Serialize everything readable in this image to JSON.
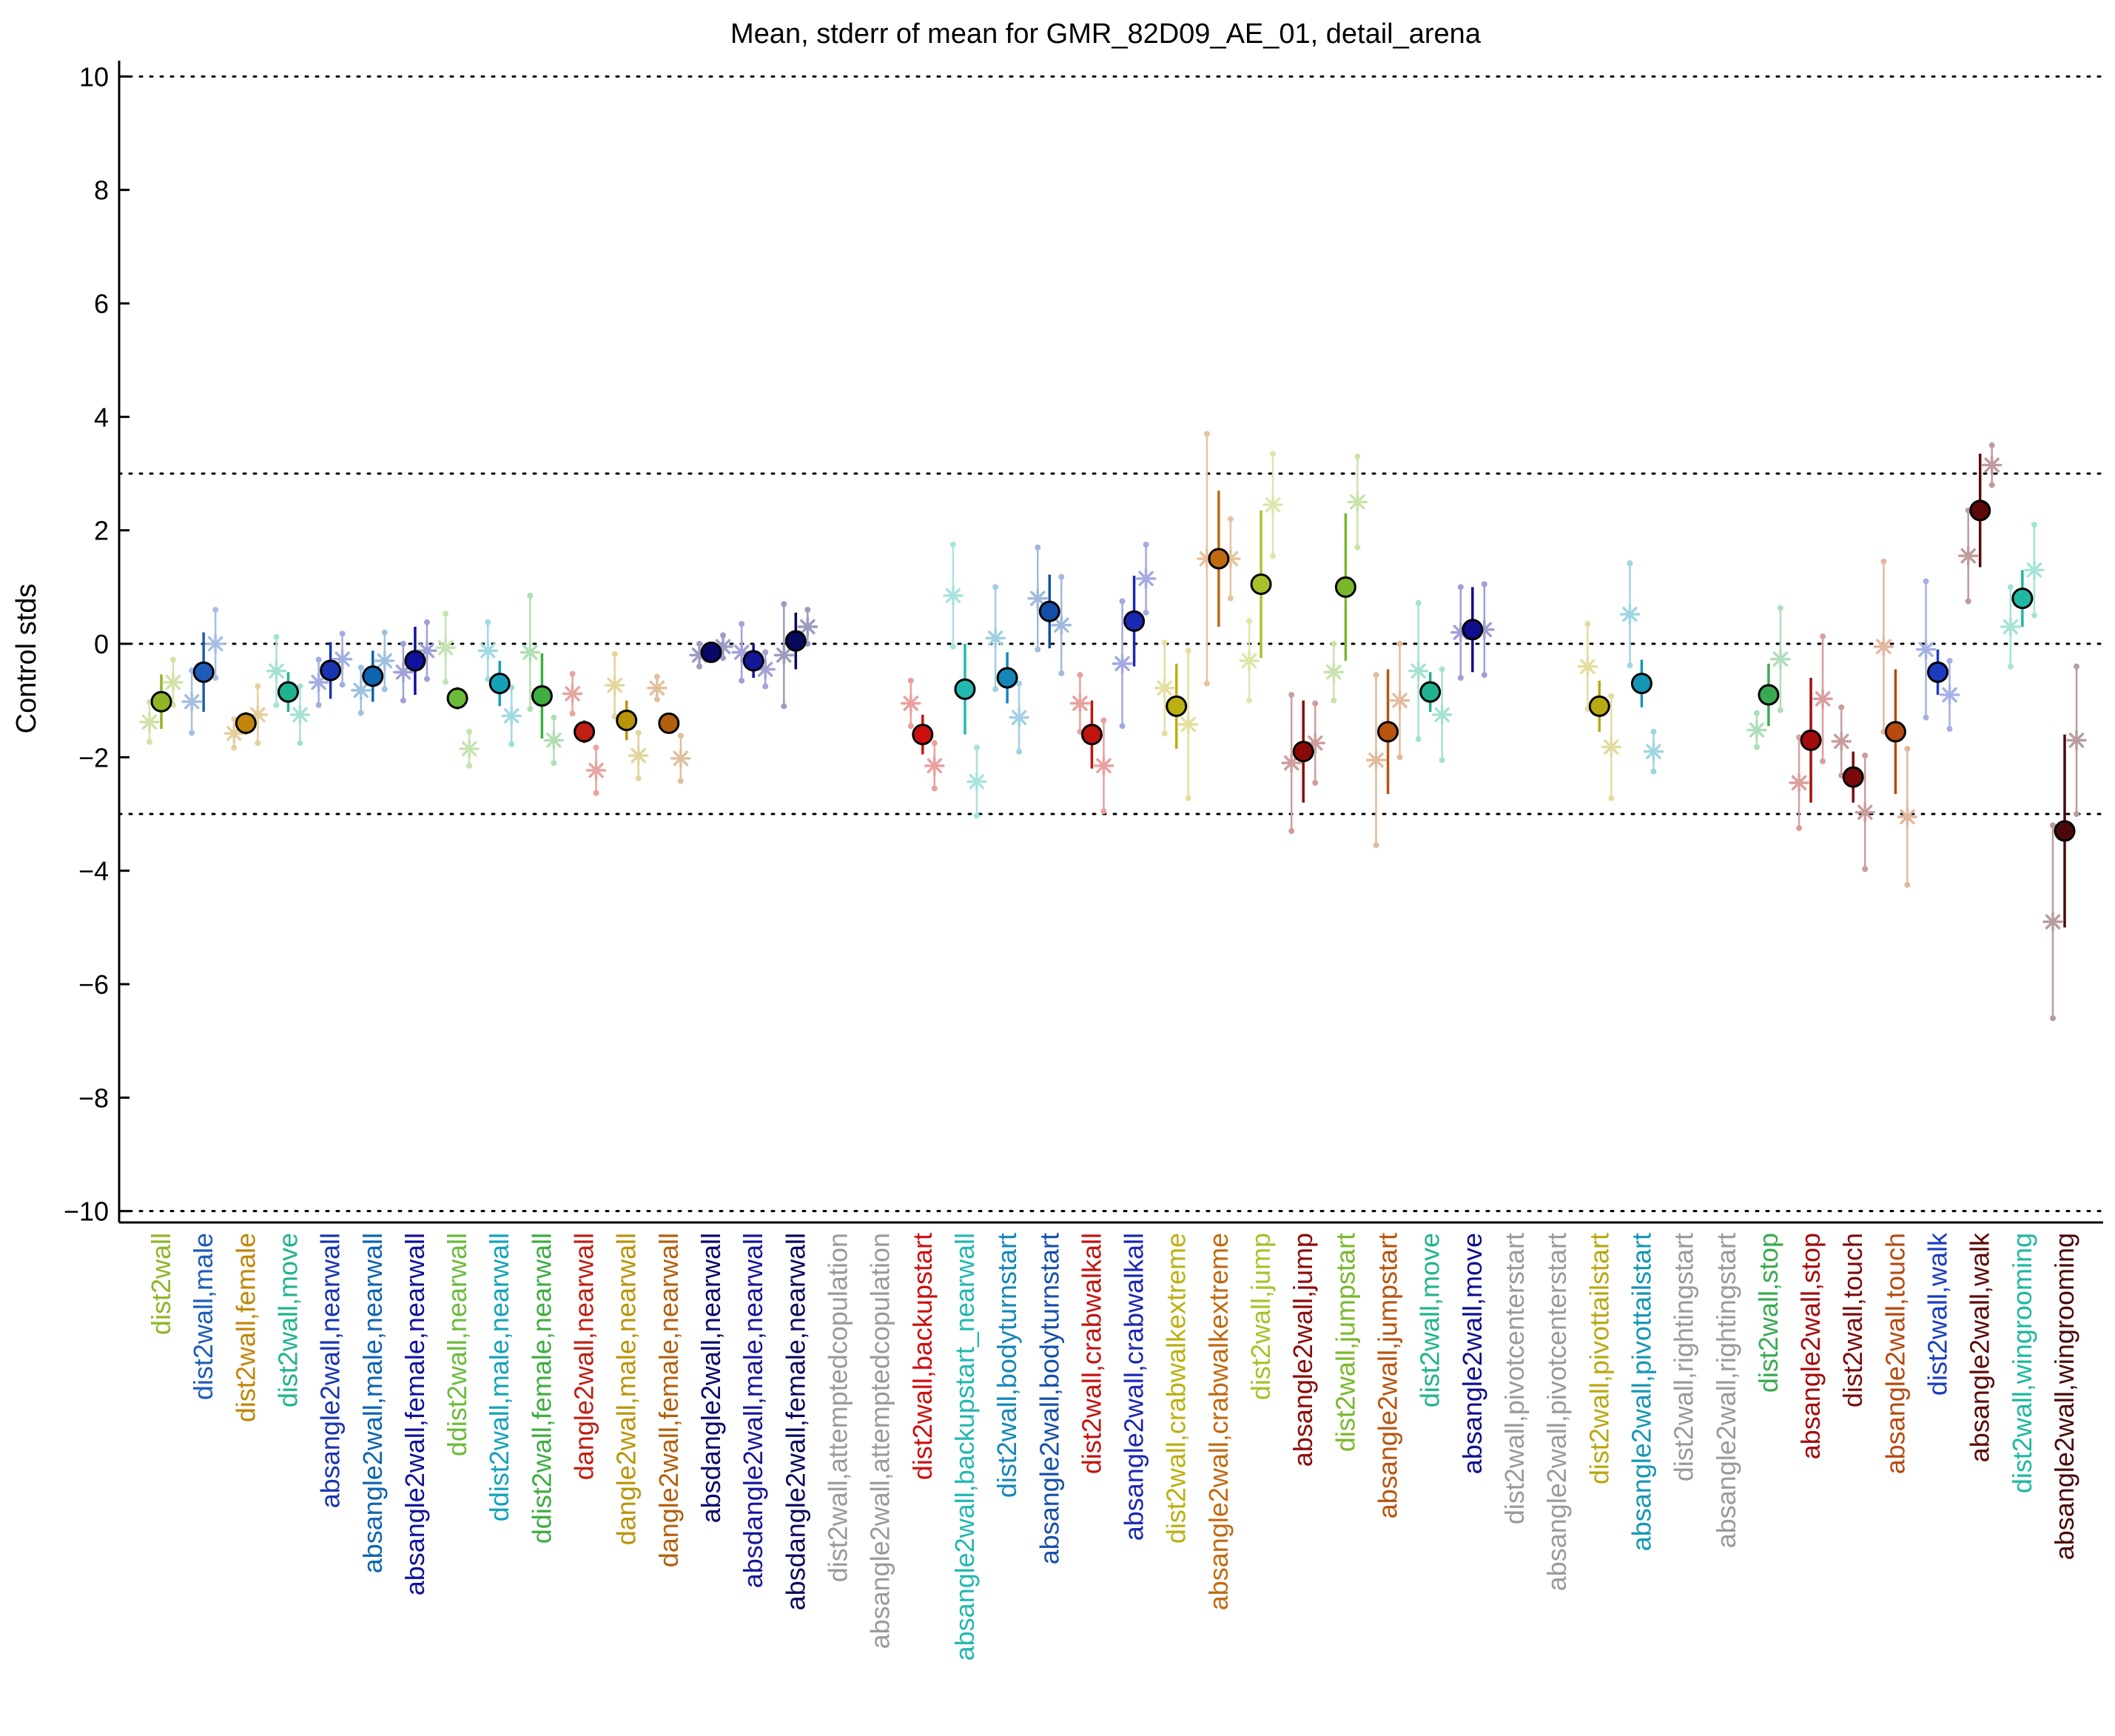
{
  "chart_data": {
    "type": "scatter",
    "title": "Mean, stderr of mean for GMR_82D09_AE_01, detail_arena",
    "ylabel": "Control stds",
    "xlabel": "",
    "ylim": [
      -10.2,
      10.2
    ],
    "yticks": [
      10,
      8,
      6,
      4,
      2,
      0,
      -2,
      -4,
      -6,
      -8,
      -10
    ],
    "ytick_labels": [
      "10",
      "8",
      "6",
      "4",
      "2",
      "0",
      "−2",
      "−4",
      "−6",
      "−8",
      "−10"
    ],
    "reference_lines": [
      10,
      3,
      0,
      -3,
      -10
    ],
    "grid": false,
    "legend": "none",
    "categories": [
      {
        "label": "dist2wall",
        "color": "#8fb526",
        "mean": -1.02,
        "se": 0.48,
        "male": -1.38,
        "female": -0.68,
        "mse": 0.35,
        "fse": 0.4
      },
      {
        "label": "dist2wall,male",
        "color": "#1f5cb8",
        "mean": -0.5,
        "se": 0.7,
        "male": -1.02,
        "female": 0.0,
        "mse": 0.55,
        "fse": 0.6
      },
      {
        "label": "dist2wall,female",
        "color": "#c1860a",
        "mean": -1.4,
        "se": 0.2,
        "male": -1.58,
        "female": -1.25,
        "mse": 0.25,
        "fse": 0.5
      },
      {
        "label": "dist2wall,move",
        "color": "#21b38f",
        "mean": -0.85,
        "se": 0.35,
        "male": -0.48,
        "female": -1.25,
        "mse": 0.6,
        "fse": 0.5
      },
      {
        "label": "absangle2wall,nearwall",
        "color": "#1a34b0",
        "mean": -0.47,
        "se": 0.5,
        "male": -0.68,
        "female": -0.27,
        "mse": 0.4,
        "fse": 0.45
      },
      {
        "label": "absangle2wall,male,nearwall",
        "color": "#0e64b0",
        "mean": -0.57,
        "se": 0.45,
        "male": -0.82,
        "female": -0.3,
        "mse": 0.4,
        "fse": 0.5
      },
      {
        "label": "absangle2wall,female,nearwall",
        "color": "#11119b",
        "mean": -0.3,
        "se": 0.6,
        "male": -0.5,
        "female": -0.12,
        "mse": 0.5,
        "fse": 0.5
      },
      {
        "label": "ddist2wall,nearwall",
        "color": "#6bbb3b",
        "mean": -0.96,
        "se": 0.2,
        "male": -0.07,
        "female": -1.85,
        "mse": 0.6,
        "fse": 0.3
      },
      {
        "label": "ddist2wall,male,nearwall",
        "color": "#15a2b8",
        "mean": -0.7,
        "se": 0.4,
        "male": -0.12,
        "female": -1.27,
        "mse": 0.5,
        "fse": 0.5
      },
      {
        "label": "ddist2wall,female,nearwall",
        "color": "#3ead42",
        "mean": -0.92,
        "se": 0.75,
        "male": -0.15,
        "female": -1.7,
        "mse": 1.0,
        "fse": 0.4
      },
      {
        "label": "dangle2wall,nearwall",
        "color": "#bf1f14",
        "mean": -1.55,
        "se": 0.2,
        "male": -0.88,
        "female": -2.23,
        "mse": 0.35,
        "fse": 0.4
      },
      {
        "label": "dangle2wall,male,nearwall",
        "color": "#b89508",
        "mean": -1.35,
        "se": 0.35,
        "male": -0.73,
        "female": -1.97,
        "mse": 0.55,
        "fse": 0.4
      },
      {
        "label": "dangle2wall,female,nearwall",
        "color": "#b2600e",
        "mean": -1.4,
        "se": 0.12,
        "male": -0.78,
        "female": -2.02,
        "mse": 0.2,
        "fse": 0.4
      },
      {
        "label": "absdangle2wall,nearwall",
        "color": "#08086b",
        "mean": -0.15,
        "se": 0.1,
        "male": -0.2,
        "female": -0.05,
        "mse": 0.2,
        "fse": 0.2
      },
      {
        "label": "absdangle2wall,male,nearwall",
        "color": "#161699",
        "mean": -0.3,
        "se": 0.3,
        "male": -0.15,
        "female": -0.45,
        "mse": 0.5,
        "fse": 0.3
      },
      {
        "label": "absdangle2wall,female,nearwall",
        "color": "#08085c",
        "mean": 0.05,
        "se": 0.5,
        "male": -0.2,
        "female": 0.3,
        "mse": 0.9,
        "fse": 0.3
      },
      {
        "label": "dist2wall,attemptedcopulation",
        "color": "#9a9a9a"
      },
      {
        "label": "absangle2wall,attemptedcopulation",
        "color": "#9a9a9a"
      },
      {
        "label": "dist2wall,backupstart",
        "color": "#cc1010",
        "mean": -1.6,
        "se": 0.35,
        "male": -1.05,
        "female": -2.15,
        "mse": 0.4,
        "fse": 0.4
      },
      {
        "label": "absangle2wall,backupstart_nearwall",
        "color": "#23b8b0",
        "mean": -0.8,
        "se": 0.8,
        "male": 0.85,
        "female": -2.43,
        "mse": 0.9,
        "fse": 0.6
      },
      {
        "label": "dist2wall,bodyturnstart",
        "color": "#1487b8",
        "mean": -0.6,
        "se": 0.45,
        "male": 0.1,
        "female": -1.3,
        "mse": 0.9,
        "fse": 0.6
      },
      {
        "label": "absangle2wall,bodyturnstart",
        "color": "#1550a8",
        "mean": 0.57,
        "se": 0.65,
        "male": 0.8,
        "female": 0.33,
        "mse": 0.9,
        "fse": 0.85
      },
      {
        "label": "dist2wall,crabwalkall",
        "color": "#c2140f",
        "mean": -1.6,
        "se": 0.6,
        "male": -1.05,
        "female": -2.15,
        "mse": 0.5,
        "fse": 0.8
      },
      {
        "label": "absangle2wall,crabwalkall",
        "color": "#1a28b3",
        "mean": 0.4,
        "se": 0.8,
        "male": -0.35,
        "female": 1.15,
        "mse": 1.1,
        "fse": 0.6
      },
      {
        "label": "dist2wall,crabwalkextreme",
        "color": "#bbb010",
        "mean": -1.1,
        "se": 0.75,
        "male": -0.78,
        "female": -1.42,
        "mse": 0.8,
        "fse": 1.3
      },
      {
        "label": "absangle2wall,crabwalkextreme",
        "color": "#c06a10",
        "mean": 1.5,
        "se": 1.2,
        "male": 1.5,
        "female": 1.5,
        "mse": 2.2,
        "fse": 0.7
      },
      {
        "label": "dist2wall,jump",
        "color": "#a9c12a",
        "mean": 1.05,
        "se": 1.3,
        "male": -0.3,
        "female": 2.45,
        "mse": 0.7,
        "fse": 0.9
      },
      {
        "label": "absangle2wall,jump",
        "color": "#8a0a0a",
        "mean": -1.9,
        "se": 0.9,
        "male": -2.1,
        "female": -1.75,
        "mse": 1.2,
        "fse": 0.7
      },
      {
        "label": "dist2wall,jumpstart",
        "color": "#7bb72c",
        "mean": 1.0,
        "se": 1.3,
        "male": -0.5,
        "female": 2.5,
        "mse": 0.5,
        "fse": 0.8
      },
      {
        "label": "absangle2wall,jumpstart",
        "color": "#b8540e",
        "mean": -1.55,
        "se": 1.1,
        "male": -2.05,
        "female": -1.0,
        "mse": 1.5,
        "fse": 1.0
      },
      {
        "label": "dist2wall,move",
        "color": "#21b38f",
        "mean": -0.85,
        "se": 0.35,
        "male": -0.48,
        "female": -1.25,
        "mse": 1.2,
        "fse": 0.8
      },
      {
        "label": "absangle2wall,move",
        "color": "#0f0f8f",
        "mean": 0.25,
        "se": 0.75,
        "male": 0.2,
        "female": 0.25,
        "mse": 0.8,
        "fse": 0.8
      },
      {
        "label": "dist2wall,pivotcenterstart",
        "color": "#9a9a9a"
      },
      {
        "label": "absangle2wall,pivotcenterstart",
        "color": "#9a9a9a"
      },
      {
        "label": "dist2wall,pivottailstart",
        "color": "#b8a812",
        "mean": -1.1,
        "se": 0.45,
        "male": -0.4,
        "female": -1.82,
        "mse": 0.75,
        "fse": 0.9
      },
      {
        "label": "absangle2wall,pivottailstart",
        "color": "#1496b5",
        "mean": -0.7,
        "se": 0.42,
        "male": 0.52,
        "female": -1.9,
        "mse": 0.9,
        "fse": 0.35
      },
      {
        "label": "dist2wall,rightingstart",
        "color": "#9a9a9a"
      },
      {
        "label": "absangle2wall,rightingstart",
        "color": "#9a9a9a"
      },
      {
        "label": "dist2wall,stop",
        "color": "#3aaa52",
        "mean": -0.9,
        "se": 0.55,
        "male": -1.52,
        "female": -0.27,
        "mse": 0.3,
        "fse": 0.9
      },
      {
        "label": "absangle2wall,stop",
        "color": "#a30c0c",
        "mean": -1.7,
        "se": 1.1,
        "male": -2.45,
        "female": -0.97,
        "mse": 0.8,
        "fse": 1.1
      },
      {
        "label": "dist2wall,touch",
        "color": "#7a0a0a",
        "mean": -2.35,
        "se": 0.45,
        "male": -1.72,
        "female": -2.97,
        "mse": 0.6,
        "fse": 1.0
      },
      {
        "label": "absangle2wall,touch",
        "color": "#b64a10",
        "mean": -1.55,
        "se": 1.1,
        "male": -0.05,
        "female": -3.05,
        "mse": 1.5,
        "fse": 1.2
      },
      {
        "label": "dist2wall,walk",
        "color": "#1b3cbf",
        "mean": -0.5,
        "se": 0.4,
        "male": -0.1,
        "female": -0.9,
        "mse": 1.2,
        "fse": 0.6
      },
      {
        "label": "absangle2wall,walk",
        "color": "#5c0808",
        "mean": 2.35,
        "se": 1.0,
        "male": 1.55,
        "female": 3.15,
        "mse": 0.8,
        "fse": 0.35
      },
      {
        "label": "dist2wall,wingrooming",
        "color": "#1fb8a0",
        "mean": 0.8,
        "se": 0.5,
        "male": 0.3,
        "female": 1.3,
        "mse": 0.7,
        "fse": 0.8
      },
      {
        "label": "absangle2wall,wingrooming",
        "color": "#4a0a0a",
        "mean": -3.3,
        "se": 1.7,
        "male": -4.9,
        "female": -1.7,
        "mse": 1.7,
        "fse": 1.3
      }
    ]
  }
}
